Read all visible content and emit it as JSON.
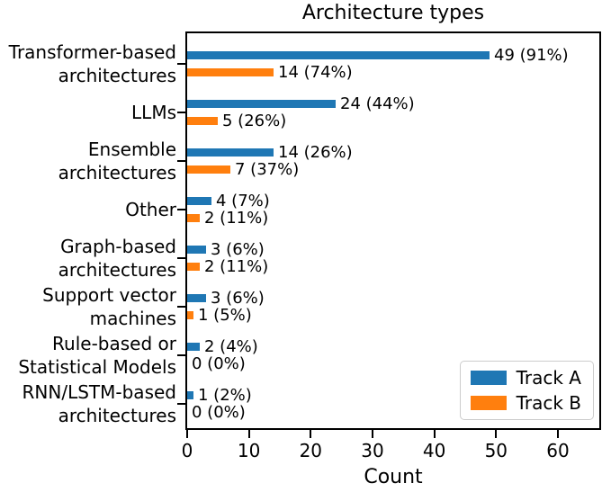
{
  "chart_data": {
    "type": "bar",
    "orientation": "horizontal",
    "title": "Architecture types",
    "xlabel": "Count",
    "xlim": [
      0,
      67
    ],
    "xticks": [
      0,
      10,
      20,
      30,
      40,
      50,
      60
    ],
    "grid": false,
    "legend_position": "lower right",
    "categories": [
      "Transformer-based\narchitectures",
      "LLMs",
      "Ensemble\narchitectures",
      "Other",
      "Graph-based\narchitectures",
      "Support vector\nmachines",
      "Rule-based or\nStatistical Models",
      "RNN/LSTM-based\narchitectures"
    ],
    "series": [
      {
        "name": "Track A",
        "color": "#1f77b4",
        "values": [
          49,
          24,
          14,
          4,
          3,
          3,
          2,
          1
        ],
        "bar_labels": [
          "49 (91%)",
          "24 (44%)",
          "14 (26%)",
          "4 (7%)",
          "3 (6%)",
          "3 (6%)",
          "2 (4%)",
          "1 (2%)"
        ]
      },
      {
        "name": "Track B",
        "color": "#ff7f0e",
        "values": [
          14,
          5,
          7,
          2,
          2,
          1,
          0,
          0
        ],
        "bar_labels": [
          "14 (74%)",
          "5 (26%)",
          "7 (37%)",
          "2 (11%)",
          "2 (11%)",
          "1 (5%)",
          "0 (0%)",
          "0 (0%)"
        ]
      }
    ]
  }
}
